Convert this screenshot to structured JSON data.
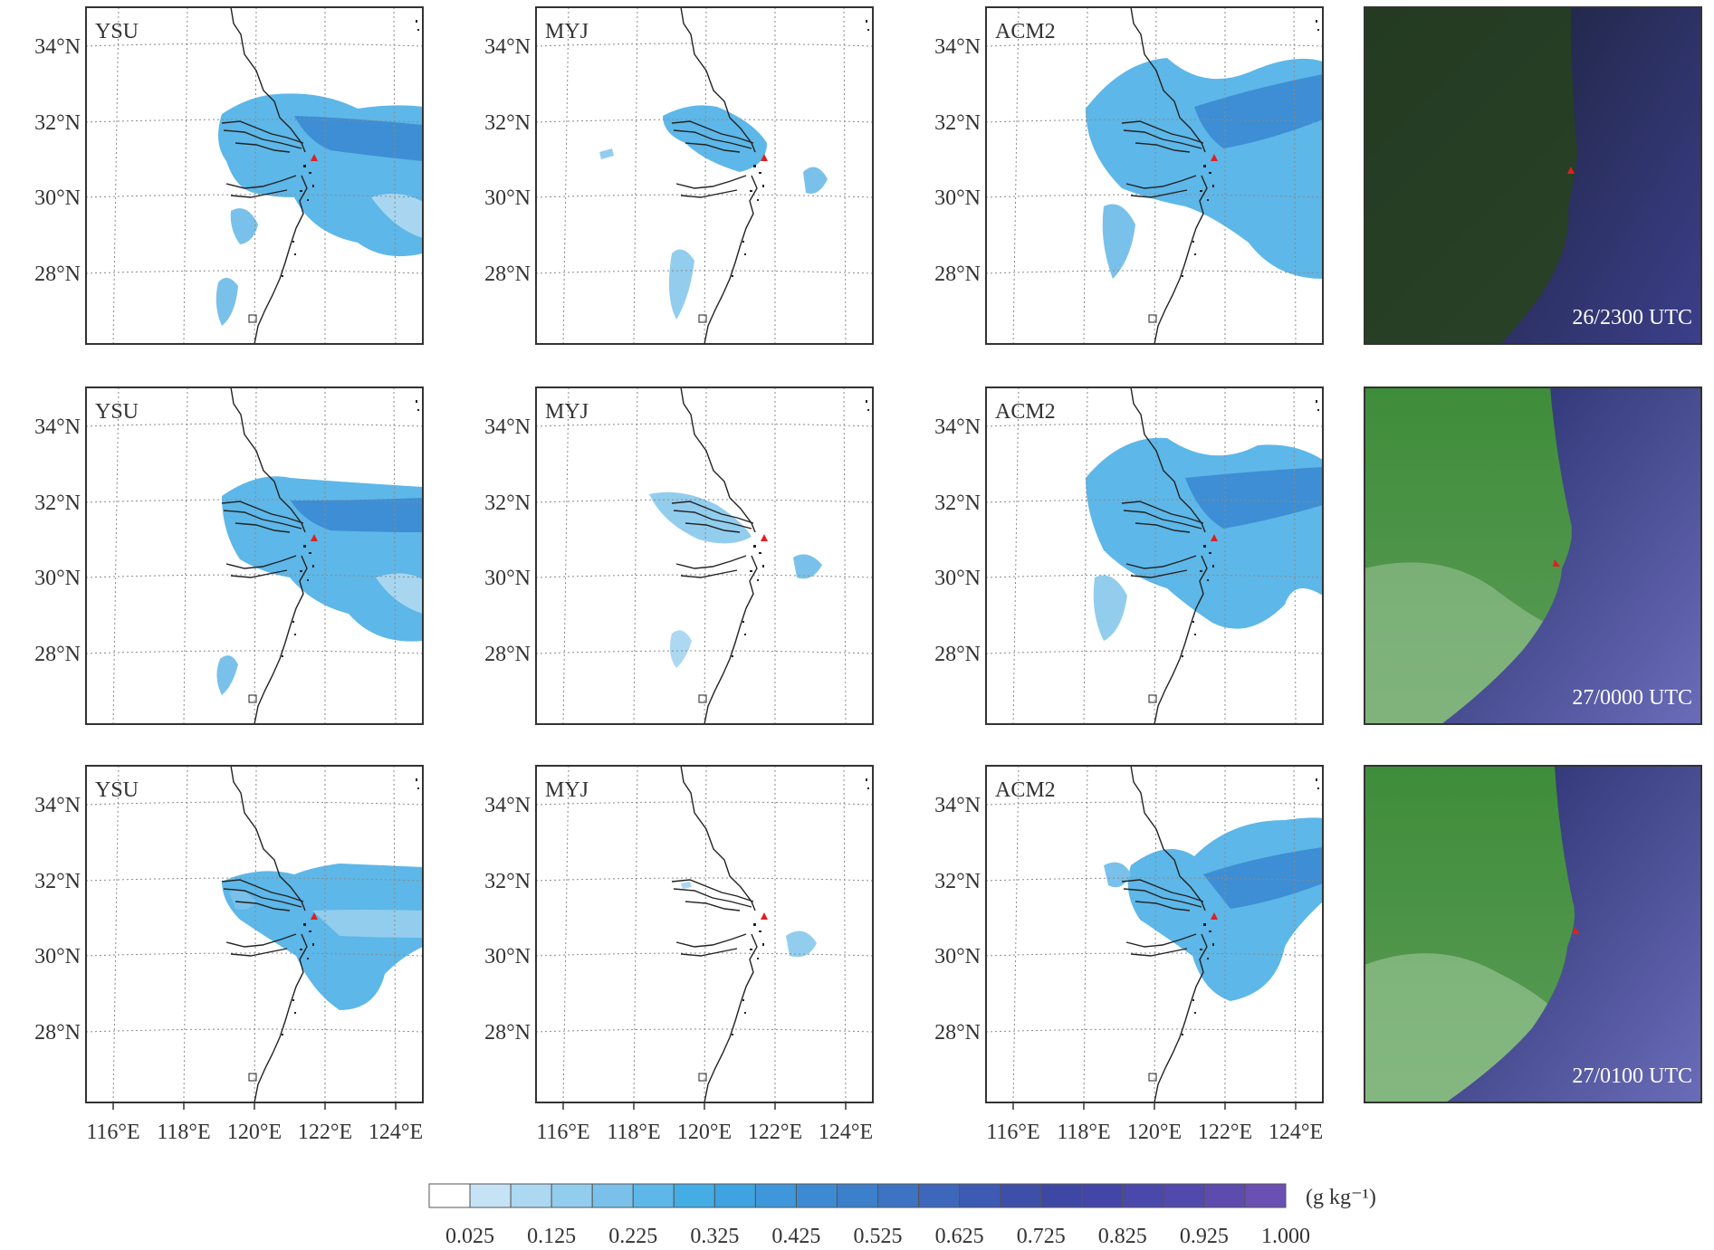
{
  "models": [
    "YSU",
    "MYJ",
    "ACM2"
  ],
  "times": [
    "26/2300 UTC",
    "27/0000 UTC",
    "27/0100 UTC"
  ],
  "lat_labels": [
    "34°N",
    "32°N",
    "30°N",
    "28°N"
  ],
  "lon_labels": [
    "116°E",
    "118°E",
    "120°E",
    "122°E",
    "124°E"
  ],
  "colorbar": {
    "unit": "(g kg⁻¹)",
    "tick_labels": [
      "0.025",
      "0.125",
      "0.225",
      "0.325",
      "0.425",
      "0.525",
      "0.625",
      "0.725",
      "0.825",
      "0.925",
      "1.000"
    ],
    "colors": [
      "#ffffff",
      "#c6e3f5",
      "#acd8f2",
      "#92cdee",
      "#79c1ea",
      "#5db7e8",
      "#44ade6",
      "#3ea3e0",
      "#3d97da",
      "#3c8bd2",
      "#3c7fca",
      "#3c73c2",
      "#3d67ba",
      "#3d5bb2",
      "#3e4faa",
      "#3f47a4",
      "#4346a6",
      "#4a48aa",
      "#5249ac",
      "#5d4cae",
      "#6a50b2"
    ]
  },
  "colors": {
    "land_satellite": "#3f8a3c",
    "sea_satellite": "#2f3a82",
    "station_marker": "#e02020",
    "frame": "#333333",
    "grid": "#8a8a8a"
  }
}
